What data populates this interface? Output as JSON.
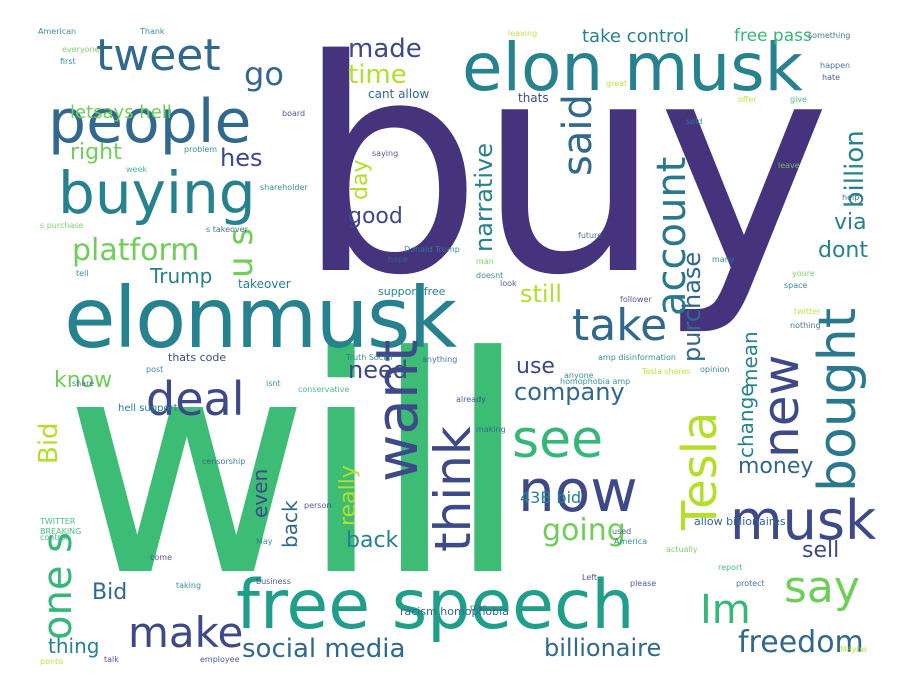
{
  "wordcloud": {
    "colors": {
      "dark_purple": "#46337e",
      "purple": "#482878",
      "indigo": "#3e4989",
      "blue": "#31688e",
      "teal_blue": "#26828e",
      "teal": "#1f9e89",
      "green": "#35b779",
      "light_green": "#6ece58",
      "lime": "#b5de2b",
      "yellow": "#fde725"
    },
    "words": [
      {
        "text": "buy",
        "color": "#46337e"
      },
      {
        "text": "will",
        "color": "#3cbc75"
      },
      {
        "text": "elon musk",
        "color": "#26828e"
      },
      {
        "text": "elonmusk",
        "color": "#26828e"
      },
      {
        "text": "free speech",
        "color": "#1f9e89"
      },
      {
        "text": "people",
        "color": "#31688e"
      },
      {
        "text": "buying",
        "color": "#26828e"
      },
      {
        "text": "tweet",
        "color": "#31688e"
      },
      {
        "text": "now",
        "color": "#3e4989"
      },
      {
        "text": "want",
        "color": "#3e4989"
      },
      {
        "text": "musk",
        "color": "#3e4989"
      },
      {
        "text": "take",
        "color": "#31688e"
      },
      {
        "text": "deal",
        "color": "#3e4989"
      },
      {
        "text": "bought",
        "color": "#2a788e"
      },
      {
        "text": "new",
        "color": "#3e4989"
      },
      {
        "text": "see",
        "color": "#35b779"
      },
      {
        "text": "think",
        "color": "#3e4989"
      },
      {
        "text": "Tesla",
        "color": "#b5de2b"
      },
      {
        "text": "say",
        "color": "#6ece58"
      },
      {
        "text": "Im",
        "color": "#35b779"
      },
      {
        "text": "make",
        "color": "#3e4989"
      },
      {
        "text": "account",
        "color": "#2a788e"
      },
      {
        "text": "said",
        "color": "#31688e"
      },
      {
        "text": "platform",
        "color": "#6ece58"
      },
      {
        "text": "u s",
        "color": "#6ece58"
      },
      {
        "text": "one s",
        "color": "#35b779"
      },
      {
        "text": "freedom",
        "color": "#31688e"
      },
      {
        "text": "social media",
        "color": "#31688e"
      },
      {
        "text": "billionaire",
        "color": "#31688e"
      },
      {
        "text": "going",
        "color": "#6ece58"
      },
      {
        "text": "go",
        "color": "#31688e"
      },
      {
        "text": "made",
        "color": "#3e4989"
      },
      {
        "text": "time",
        "color": "#b5de2b"
      },
      {
        "text": "hes",
        "color": "#3e4989"
      },
      {
        "text": "right",
        "color": "#6ece58"
      },
      {
        "text": "letsays hell",
        "color": "#6ece58"
      },
      {
        "text": "take control",
        "color": "#26828e"
      },
      {
        "text": "free pass",
        "color": "#35b779"
      },
      {
        "text": "billion",
        "color": "#26828e"
      },
      {
        "text": "via",
        "color": "#26828e"
      },
      {
        "text": "dont",
        "color": "#26828e"
      },
      {
        "text": "purchase",
        "color": "#31688e"
      },
      {
        "text": "mean",
        "color": "#26828e"
      },
      {
        "text": "narrative",
        "color": "#26828e"
      },
      {
        "text": "day",
        "color": "#b5de2b"
      },
      {
        "text": "good",
        "color": "#3e4989"
      },
      {
        "text": "Trump",
        "color": "#26828e"
      },
      {
        "text": "still",
        "color": "#b5de2b"
      },
      {
        "text": "know",
        "color": "#6ece58"
      },
      {
        "text": "need",
        "color": "#3e4989"
      },
      {
        "text": "use",
        "color": "#3e4989"
      },
      {
        "text": "company",
        "color": "#31688e"
      },
      {
        "text": "change",
        "color": "#26828e"
      },
      {
        "text": "money",
        "color": "#31688e"
      },
      {
        "text": "sell",
        "color": "#3e4989"
      },
      {
        "text": "43B bid",
        "color": "#26828e"
      },
      {
        "text": "really",
        "color": "#b5de2b"
      },
      {
        "text": "even",
        "color": "#3e4989"
      },
      {
        "text": "back",
        "color": "#31688e"
      },
      {
        "text": "world",
        "color": "#26828e"
      },
      {
        "text": "Bid",
        "color": "#b5de2b"
      },
      {
        "text": "thing",
        "color": "#31688e"
      },
      {
        "text": "thats",
        "color": "#26828e"
      },
      {
        "text": "cant allow",
        "color": "#3e4989"
      },
      {
        "text": "takeover",
        "color": "#31688e"
      },
      {
        "text": "support free",
        "color": "#26828e"
      },
      {
        "text": "thats code",
        "color": "#26828e"
      },
      {
        "text": "racism homophobia",
        "color": "#3e4989"
      },
      {
        "text": "allow billionaires",
        "color": "#31688e"
      },
      {
        "text": "hell support",
        "color": "#31688e"
      },
      {
        "text": "craft long news outlet",
        "color": "#26828e"
      },
      {
        "text": "American",
        "color": "#26828e"
      },
      {
        "text": "Thank",
        "color": "#26828e"
      },
      {
        "text": "leaving",
        "color": "#b5de2b"
      },
      {
        "text": "something",
        "color": "#31688e"
      },
      {
        "text": "happen",
        "color": "#31688e"
      },
      {
        "text": "hate",
        "color": "#3e4989"
      },
      {
        "text": "first",
        "color": "#26828e"
      },
      {
        "text": "offer",
        "color": "#b5de2b"
      },
      {
        "text": "give",
        "color": "#35b779"
      },
      {
        "text": "help",
        "color": "#31688e"
      },
      {
        "text": "leave",
        "color": "#6ece58"
      },
      {
        "text": "future",
        "color": "#31688e"
      },
      {
        "text": "s purchase",
        "color": "#6ece58"
      },
      {
        "text": "s takeover",
        "color": "#31688e"
      },
      {
        "text": "business",
        "color": "#3e4989"
      },
      {
        "text": "America",
        "color": "#26828e"
      },
      {
        "text": "actually",
        "color": "#6ece58"
      },
      {
        "text": "report",
        "color": "#35b779"
      },
      {
        "text": "protect",
        "color": "#31688e"
      },
      {
        "text": "Left",
        "color": "#3e4989"
      },
      {
        "text": "please",
        "color": "#3e4989"
      },
      {
        "text": "employee",
        "color": "#3e4989"
      },
      {
        "text": "plan",
        "color": "#31688e"
      },
      {
        "text": "tell",
        "color": "#26828e"
      },
      {
        "text": "space",
        "color": "#26828e"
      },
      {
        "text": "youre",
        "color": "#6ece58"
      },
      {
        "text": "many",
        "color": "#26828e"
      },
      {
        "text": "nothing",
        "color": "#31688e"
      },
      {
        "text": "twitter",
        "color": "#b5de2b"
      },
      {
        "text": "opinion",
        "color": "#26828e"
      },
      {
        "text": "already",
        "color": "#3e4989"
      },
      {
        "text": "making",
        "color": "#31688e"
      },
      {
        "text": "person",
        "color": "#3e4989"
      },
      {
        "text": "conservative",
        "color": "#35b779"
      },
      {
        "text": "Maybe",
        "color": "#b5de2b"
      },
      {
        "text": "anyone",
        "color": "#26828e"
      },
      {
        "text": "anything",
        "color": "#31688e"
      },
      {
        "text": "billion",
        "color": "#26828e"
      },
      {
        "text": "Truth Social",
        "color": "#26828e"
      },
      {
        "text": "censorship",
        "color": "#31688e"
      },
      {
        "text": "share",
        "color": "#31688e"
      },
      {
        "text": "TWITTER",
        "color": "#35b779"
      },
      {
        "text": "BREAKING",
        "color": "#35b779"
      },
      {
        "text": "come",
        "color": "#3e4989"
      },
      {
        "text": "taking",
        "color": "#26828e"
      },
      {
        "text": "talk",
        "color": "#3e4989"
      },
      {
        "text": "May",
        "color": "#26828e"
      },
      {
        "text": "used",
        "color": "#3e4989"
      },
      {
        "text": "shareholder",
        "color": "#26828e"
      },
      {
        "text": "problem",
        "color": "#26828e"
      },
      {
        "text": "week",
        "color": "#35b779"
      },
      {
        "text": "board",
        "color": "#3e4989"
      },
      {
        "text": "saying",
        "color": "#3e4989"
      },
      {
        "text": "believe",
        "color": "#26828e"
      },
      {
        "text": "sold",
        "color": "#26828e"
      },
      {
        "text": "hope",
        "color": "#31688e"
      },
      {
        "text": "Donald Trump",
        "color": "#26828e"
      },
      {
        "text": "powerful",
        "color": "#b5de2b"
      },
      {
        "text": "homophobia amp",
        "color": "#26828e"
      },
      {
        "text": "amp disinformation",
        "color": "#26828e"
      },
      {
        "text": "Tesla shares",
        "color": "#26828e"
      },
      {
        "text": "follower",
        "color": "#b5de2b"
      },
      {
        "text": "doesnt",
        "color": "#3e4989"
      },
      {
        "text": "look",
        "color": "#26828e"
      },
      {
        "text": "man",
        "color": "#3e4989"
      },
      {
        "text": "post",
        "color": "#6ece58"
      },
      {
        "text": "isnt",
        "color": "#26828e"
      },
      {
        "text": "ponto",
        "color": "#26828e"
      },
      {
        "text": "via YouTube",
        "color": "#b5de2b"
      },
      {
        "text": "Liberal",
        "color": "#26828e"
      },
      {
        "text": "control",
        "color": "#26828e"
      },
      {
        "text": "trying",
        "color": "#35b779"
      },
      {
        "text": "everyone",
        "color": "#3e4989"
      },
      {
        "text": "great",
        "color": "#6ece58"
      },
      {
        "text": "year",
        "color": "#b5de2b"
      }
    ]
  }
}
